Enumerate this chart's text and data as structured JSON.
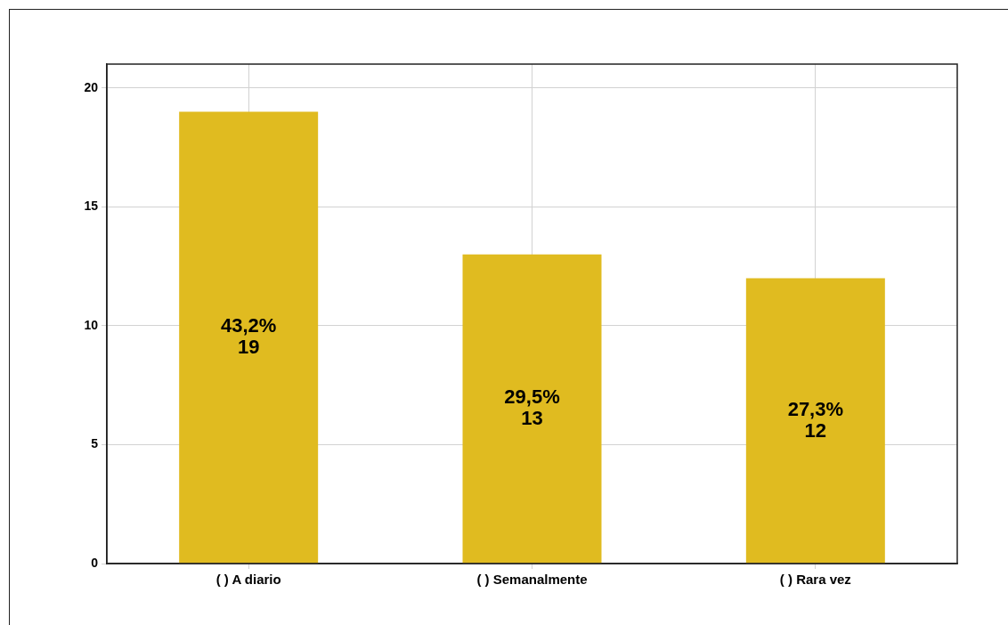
{
  "chart_data": {
    "type": "bar",
    "categories": [
      "( ) A diario",
      "( ) Semanalmente",
      "( ) Rara vez"
    ],
    "values": [
      19,
      13,
      12
    ],
    "color": "#e0bb20",
    "value_labels": [
      "43,2%\n19",
      "29,5%\n13",
      "27,3%\n12"
    ],
    "ylim": [
      0,
      21
    ],
    "yticks": [
      0,
      5,
      10,
      15,
      20
    ],
    "grid": true
  }
}
